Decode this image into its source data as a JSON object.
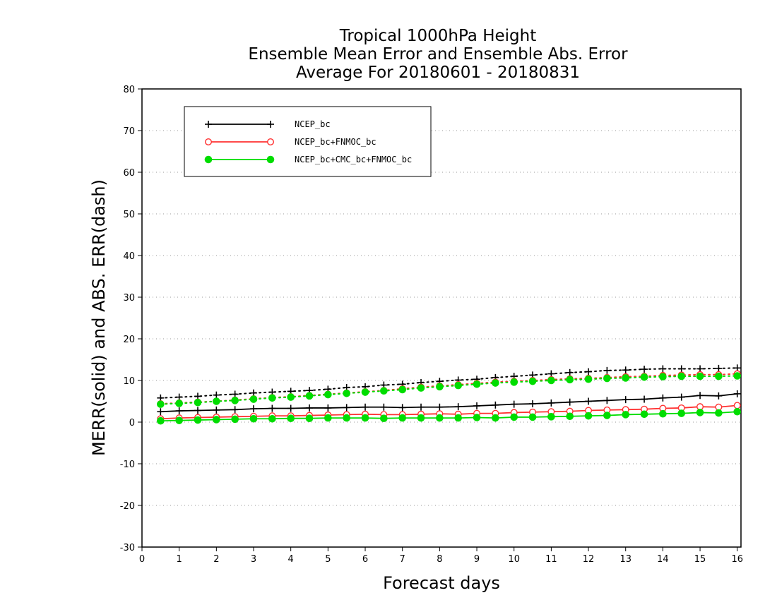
{
  "chart_data": {
    "type": "line",
    "title": [
      "Tropical 1000hPa Height",
      "Ensemble Mean Error and Ensemble Abs. Error",
      "Average For 20180601 - 20180831"
    ],
    "xlabel": "Forecast days",
    "ylabel": "MERR(solid) and ABS. ERR(dash)",
    "xlim": [
      0,
      16.1
    ],
    "ylim": [
      -30,
      80
    ],
    "xticks": [
      0,
      1,
      2,
      3,
      4,
      5,
      6,
      7,
      8,
      9,
      10,
      11,
      12,
      13,
      14,
      15,
      16
    ],
    "yticks": [
      -30,
      -20,
      -10,
      0,
      10,
      20,
      30,
      40,
      50,
      60,
      70,
      80
    ],
    "grid": true,
    "legend_position": "top-left",
    "x": [
      0.5,
      1,
      1.5,
      2,
      2.5,
      3,
      3.5,
      4,
      4.5,
      5,
      5.5,
      6,
      6.5,
      7,
      7.5,
      8,
      8.5,
      9,
      9.5,
      10,
      10.5,
      11,
      11.5,
      12,
      12.5,
      13,
      13.5,
      14,
      14.5,
      15,
      15.5,
      16
    ],
    "series": [
      {
        "name": "NCEP_bc",
        "color": "#000000",
        "marker": "plus",
        "merr": [
          2.5,
          2.7,
          2.8,
          2.9,
          3.0,
          3.2,
          3.3,
          3.3,
          3.4,
          3.4,
          3.5,
          3.6,
          3.6,
          3.5,
          3.6,
          3.6,
          3.7,
          3.9,
          4.1,
          4.3,
          4.4,
          4.6,
          4.8,
          5.0,
          5.2,
          5.4,
          5.5,
          5.8,
          6.0,
          6.4,
          6.3,
          6.8
        ],
        "abs_err": [
          5.8,
          6.0,
          6.2,
          6.5,
          6.7,
          7.0,
          7.2,
          7.4,
          7.6,
          7.9,
          8.3,
          8.5,
          8.9,
          9.1,
          9.5,
          9.8,
          10.1,
          10.3,
          10.7,
          11.0,
          11.3,
          11.6,
          11.9,
          12.1,
          12.4,
          12.5,
          12.7,
          12.8,
          12.8,
          12.8,
          12.9,
          13.0
        ]
      },
      {
        "name": "NCEP_bc+FNMOC_bc",
        "color": "#ff3030",
        "marker": "open-circle",
        "merr": [
          0.8,
          1.0,
          1.1,
          1.2,
          1.3,
          1.4,
          1.5,
          1.5,
          1.6,
          1.7,
          1.8,
          1.9,
          1.8,
          1.8,
          1.9,
          2.0,
          1.9,
          2.1,
          2.1,
          2.3,
          2.4,
          2.5,
          2.6,
          2.8,
          2.9,
          3.0,
          3.1,
          3.3,
          3.4,
          3.7,
          3.6,
          4.0
        ],
        "abs_err": [
          4.4,
          4.6,
          4.8,
          5.0,
          5.3,
          5.6,
          5.9,
          6.1,
          6.4,
          6.7,
          7.0,
          7.3,
          7.6,
          8.0,
          8.4,
          8.7,
          9.0,
          9.3,
          9.6,
          9.8,
          10.0,
          10.2,
          10.4,
          10.5,
          10.7,
          10.9,
          11.0,
          11.2,
          11.3,
          11.4,
          11.4,
          11.6
        ]
      },
      {
        "name": "NCEP_bc+CMC_bc+FNMOC_bc",
        "color": "#00dd00",
        "marker": "filled-circle",
        "merr": [
          0.3,
          0.4,
          0.5,
          0.6,
          0.7,
          0.8,
          0.8,
          0.9,
          0.9,
          1.0,
          1.0,
          1.0,
          0.9,
          1.0,
          1.0,
          1.0,
          1.0,
          1.1,
          1.0,
          1.2,
          1.2,
          1.3,
          1.4,
          1.5,
          1.6,
          1.8,
          1.9,
          2.0,
          2.1,
          2.3,
          2.2,
          2.5
        ],
        "abs_err": [
          4.3,
          4.5,
          4.7,
          5.0,
          5.2,
          5.5,
          5.8,
          6.0,
          6.3,
          6.6,
          6.9,
          7.2,
          7.5,
          7.8,
          8.2,
          8.5,
          8.8,
          9.1,
          9.4,
          9.6,
          9.8,
          10.0,
          10.2,
          10.3,
          10.5,
          10.6,
          10.8,
          10.9,
          11.0,
          11.0,
          11.0,
          11.1
        ]
      }
    ]
  }
}
